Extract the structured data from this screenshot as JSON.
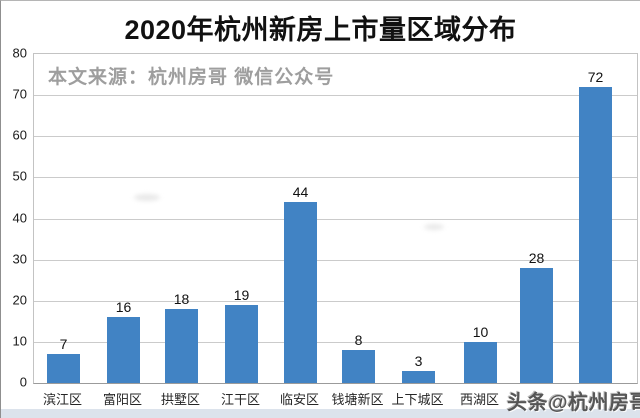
{
  "title": "2020年杭州新房上市量区域分布",
  "source_note": "本文来源：杭州房哥 微信公众号",
  "watermark": "头条@杭州房哥",
  "colors": {
    "bar": "#4183c4",
    "grid": "#cbcbcb",
    "band": "#dce3ec",
    "title_text": "#111111",
    "source_text": "#9e9e9e",
    "watermark_text": "#565656"
  },
  "chart_data": {
    "type": "bar",
    "title": "2020年杭州新房上市量区域分布",
    "categories": [
      "滨江区",
      "富阳区",
      "拱墅区",
      "江干区",
      "临安区",
      "钱塘新区",
      "上下城区",
      "西湖区",
      "",
      ""
    ],
    "values": [
      7,
      16,
      18,
      19,
      44,
      8,
      3,
      10,
      28,
      72
    ],
    "yticks": [
      0,
      10,
      20,
      30,
      40,
      50,
      60,
      70,
      80
    ],
    "ylim": [
      0,
      80
    ],
    "xlabel": "",
    "ylabel": "",
    "grid": true,
    "legend": false
  }
}
